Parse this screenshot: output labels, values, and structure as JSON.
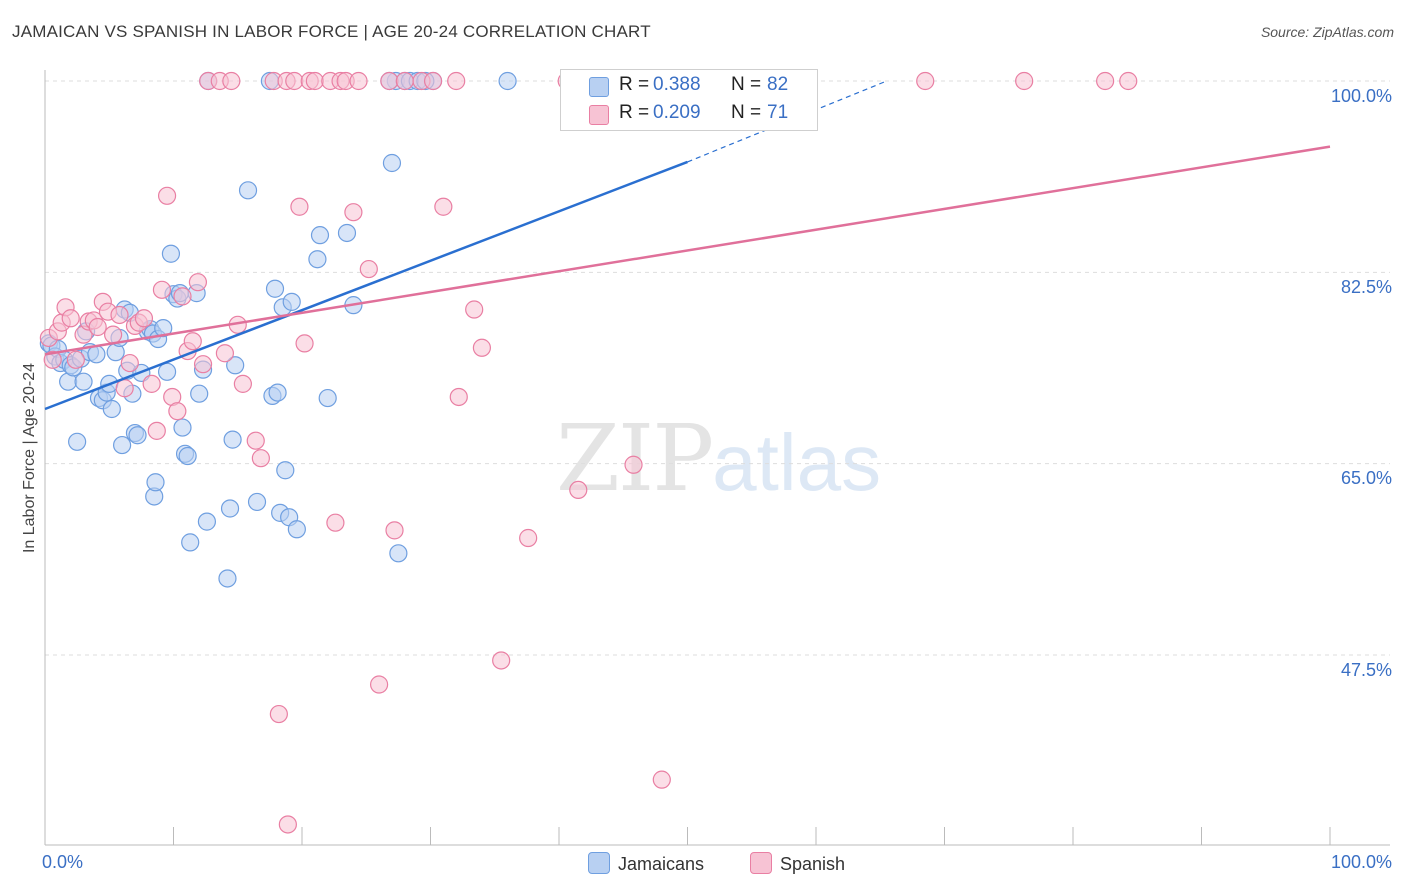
{
  "header": {
    "title": "JAMAICAN VS SPANISH IN LABOR FORCE | AGE 20-24 CORRELATION CHART",
    "source": "Source: ZipAtlas.com"
  },
  "watermark": {
    "zip": "ZIP",
    "atlas": "atlas"
  },
  "colors": {
    "blue": "#6f9fe0",
    "blue_line": "#2a6fd0",
    "blue_fill": "#b8d0f2",
    "pink": "#e97fa3",
    "pink_line": "#e0709a",
    "pink_fill": "#f7c3d4",
    "tick_text": "#3a6fc4",
    "grid": "#dddddd"
  },
  "legend": {
    "rows": [
      {
        "r_label": "R =",
        "r_value": "0.388",
        "n_label": "N =",
        "n_value": "82"
      },
      {
        "r_label": "R =",
        "r_value": "0.209",
        "n_label": "N =",
        "n_value": "71"
      }
    ]
  },
  "bottom_legend": {
    "series1": "Jamaicans",
    "series2": "Spanish"
  },
  "axes": {
    "ylabel": "In Labor Force | Age 20-24",
    "x_tick_left": "0.0%",
    "x_tick_right": "100.0%",
    "y_ticks": [
      "100.0%",
      "82.5%",
      "65.0%",
      "47.5%"
    ]
  },
  "chart_data": {
    "type": "scatter",
    "title": "JAMAICAN VS SPANISH IN LABOR FORCE | AGE 20-24 CORRELATION CHART",
    "xlabel": "",
    "ylabel": "In Labor Force | Age 20-24",
    "xlim": [
      0,
      100
    ],
    "ylim": [
      31,
      101
    ],
    "y_gridlines": [
      100,
      82.5,
      65,
      47.5
    ],
    "grid": true,
    "legend_position": "top-center",
    "series": [
      {
        "name": "Jamaicans",
        "color": "#6f9fe0",
        "R": 0.388,
        "N": 82,
        "trend": {
          "x0": 0,
          "y0": 70.0,
          "x1": 50,
          "y1": 92.6,
          "dash_to_x": 65.5,
          "dash_to_y": 100
        },
        "points": [
          [
            0.3,
            76
          ],
          [
            0.5,
            75.8
          ],
          [
            0.8,
            74.8
          ],
          [
            1.0,
            75.5
          ],
          [
            1.2,
            74.2
          ],
          [
            1.5,
            74.5
          ],
          [
            1.8,
            72.5
          ],
          [
            2.0,
            74
          ],
          [
            2.2,
            73.8
          ],
          [
            2.5,
            67
          ],
          [
            2.8,
            74.6
          ],
          [
            3.0,
            72.5
          ],
          [
            3.2,
            77.1
          ],
          [
            3.5,
            75.2
          ],
          [
            4.0,
            75
          ],
          [
            4.2,
            71
          ],
          [
            4.5,
            70.8
          ],
          [
            4.8,
            71.5
          ],
          [
            5.0,
            72.3
          ],
          [
            5.2,
            70
          ],
          [
            5.5,
            75.2
          ],
          [
            5.8,
            76.5
          ],
          [
            6.0,
            66.7
          ],
          [
            6.2,
            79.1
          ],
          [
            6.4,
            73.5
          ],
          [
            6.6,
            78.8
          ],
          [
            6.8,
            71.4
          ],
          [
            7.0,
            67.8
          ],
          [
            7.2,
            67.6
          ],
          [
            7.5,
            73.3
          ],
          [
            8.0,
            77.1
          ],
          [
            8.2,
            77.3
          ],
          [
            8.4,
            76.9
          ],
          [
            8.5,
            62
          ],
          [
            8.6,
            63.3
          ],
          [
            8.8,
            76.4
          ],
          [
            9.2,
            77.4
          ],
          [
            9.5,
            73.4
          ],
          [
            9.8,
            84.2
          ],
          [
            10.0,
            80.5
          ],
          [
            10.3,
            80.1
          ],
          [
            10.5,
            80.6
          ],
          [
            10.7,
            68.3
          ],
          [
            10.9,
            65.9
          ],
          [
            11.1,
            65.7
          ],
          [
            11.3,
            57.8
          ],
          [
            11.8,
            80.6
          ],
          [
            12.0,
            71.4
          ],
          [
            12.3,
            73.6
          ],
          [
            12.6,
            59.7
          ],
          [
            12.7,
            100
          ],
          [
            14.2,
            54.5
          ],
          [
            14.4,
            60.9
          ],
          [
            14.6,
            67.2
          ],
          [
            14.8,
            74
          ],
          [
            15.8,
            90
          ],
          [
            16.5,
            61.5
          ],
          [
            17.5,
            100
          ],
          [
            17.7,
            71.2
          ],
          [
            17.9,
            81
          ],
          [
            18.1,
            71.5
          ],
          [
            18.3,
            60.5
          ],
          [
            18.5,
            79.3
          ],
          [
            18.7,
            64.4
          ],
          [
            19.0,
            60.1
          ],
          [
            19.2,
            79.8
          ],
          [
            19.6,
            59
          ],
          [
            21.2,
            83.7
          ],
          [
            21.4,
            85.9
          ],
          [
            22.0,
            71
          ],
          [
            23.5,
            86.1
          ],
          [
            24.0,
            79.5
          ],
          [
            27.0,
            92.5
          ],
          [
            27.3,
            100
          ],
          [
            27.5,
            56.8
          ],
          [
            28.0,
            100
          ],
          [
            28.4,
            100
          ],
          [
            29.0,
            100
          ],
          [
            36.0,
            100
          ],
          [
            30.2,
            100
          ],
          [
            29.6,
            100
          ],
          [
            26.8,
            100
          ]
        ]
      },
      {
        "name": "Spanish",
        "color": "#e97fa3",
        "R": 0.209,
        "N": 71,
        "trend": {
          "x0": 0,
          "y0": 75.0,
          "x1": 100,
          "y1": 94.0
        },
        "points": [
          [
            0.3,
            76.5
          ],
          [
            0.6,
            74.5
          ],
          [
            1.0,
            77.1
          ],
          [
            1.3,
            77.9
          ],
          [
            1.6,
            79.3
          ],
          [
            2.0,
            78.3
          ],
          [
            2.4,
            74.5
          ],
          [
            3.0,
            76.8
          ],
          [
            3.4,
            78
          ],
          [
            3.8,
            78.1
          ],
          [
            4.1,
            77.5
          ],
          [
            4.5,
            79.8
          ],
          [
            4.9,
            78.9
          ],
          [
            5.3,
            76.8
          ],
          [
            5.8,
            78.6
          ],
          [
            6.2,
            71.9
          ],
          [
            6.6,
            74.2
          ],
          [
            7.0,
            77.6
          ],
          [
            7.3,
            77.9
          ],
          [
            7.7,
            78.3
          ],
          [
            8.3,
            72.3
          ],
          [
            8.7,
            68
          ],
          [
            9.1,
            80.9
          ],
          [
            9.5,
            89.5
          ],
          [
            9.9,
            71.1
          ],
          [
            10.3,
            69.8
          ],
          [
            10.7,
            80.3
          ],
          [
            11.1,
            75.3
          ],
          [
            11.5,
            76.2
          ],
          [
            11.9,
            81.6
          ],
          [
            12.3,
            74.1
          ],
          [
            12.7,
            100
          ],
          [
            13.6,
            100
          ],
          [
            14.0,
            75.1
          ],
          [
            14.5,
            100
          ],
          [
            15.0,
            77.7
          ],
          [
            15.4,
            72.3
          ],
          [
            16.4,
            67.1
          ],
          [
            16.8,
            65.5
          ],
          [
            17.8,
            100
          ],
          [
            18.2,
            42.1
          ],
          [
            18.8,
            100
          ],
          [
            19.4,
            100
          ],
          [
            19.8,
            88.5
          ],
          [
            20.2,
            76
          ],
          [
            20.6,
            100
          ],
          [
            21.0,
            100
          ],
          [
            22.2,
            100
          ],
          [
            22.6,
            59.6
          ],
          [
            23.0,
            100
          ],
          [
            23.4,
            100
          ],
          [
            24.0,
            88
          ],
          [
            24.4,
            100
          ],
          [
            25.2,
            82.8
          ],
          [
            26.0,
            44.8
          ],
          [
            26.8,
            100
          ],
          [
            27.2,
            58.9
          ],
          [
            28.0,
            100
          ],
          [
            29.3,
            100
          ],
          [
            30.2,
            100
          ],
          [
            31.0,
            88.5
          ],
          [
            32.0,
            100
          ],
          [
            32.2,
            71.1
          ],
          [
            33.4,
            79.1
          ],
          [
            34.0,
            75.6
          ],
          [
            35.5,
            47
          ],
          [
            37.6,
            58.2
          ],
          [
            40.6,
            100
          ],
          [
            41.5,
            62.6
          ],
          [
            45.8,
            64.9
          ],
          [
            58.8,
            100
          ]
        ]
      }
    ],
    "extra_points_spanish": [
      [
        18.9,
        32
      ],
      [
        48.0,
        36.1
      ],
      [
        68.5,
        100
      ],
      [
        76.2,
        100
      ],
      [
        82.5,
        100
      ],
      [
        84.3,
        100
      ]
    ]
  }
}
